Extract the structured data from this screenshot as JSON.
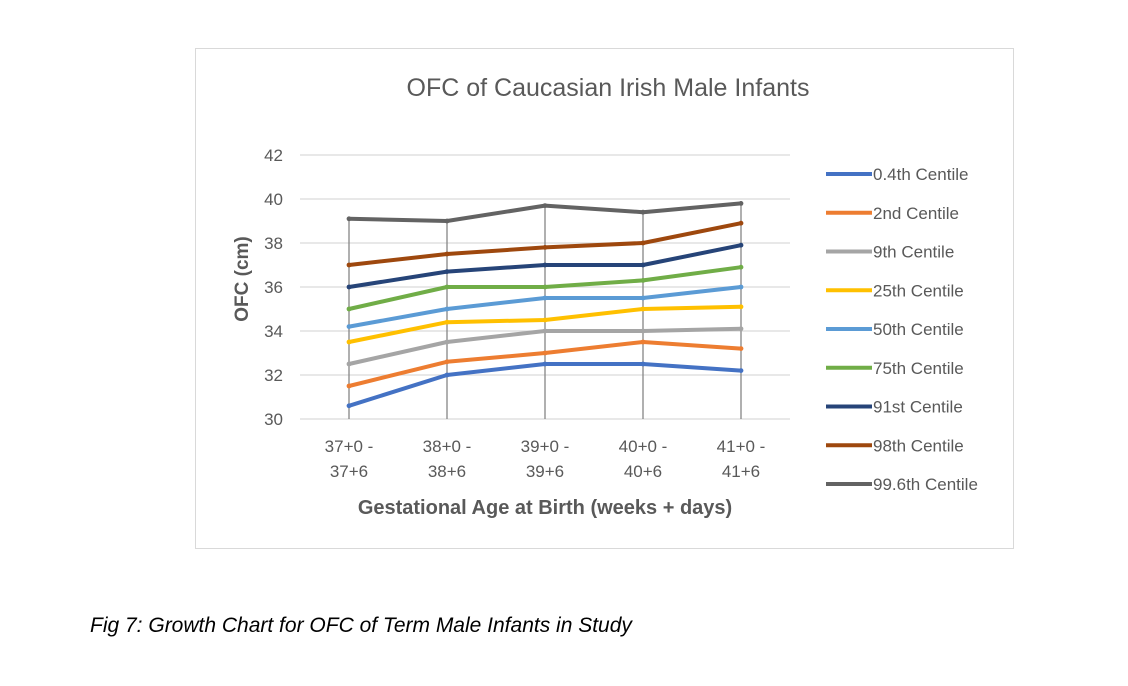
{
  "caption": "Fig 7: Growth Chart for OFC of Term Male Infants in Study",
  "chart_data": {
    "type": "line",
    "title": "OFC of Caucasian Irish Male Infants",
    "xlabel": "Gestational Age at Birth (weeks + days)",
    "ylabel": "OFC (cm)",
    "ylim": [
      30,
      42
    ],
    "yticks": [
      30,
      32,
      34,
      36,
      38,
      40,
      42
    ],
    "grid": true,
    "legend_position": "right",
    "categories": [
      [
        "37+0 -",
        "37+6"
      ],
      [
        "38+0 -",
        "38+6"
      ],
      [
        "39+0 -",
        "39+6"
      ],
      [
        "40+0 -",
        "40+6"
      ],
      [
        "41+0 -",
        "41+6"
      ]
    ],
    "series": [
      {
        "name": "0.4th Centile",
        "color": "#4472c4",
        "values": [
          30.6,
          32.0,
          32.5,
          32.5,
          32.2
        ]
      },
      {
        "name": "2nd Centile",
        "color": "#ed7d31",
        "values": [
          31.5,
          32.6,
          33.0,
          33.5,
          33.2
        ]
      },
      {
        "name": "9th Centile",
        "color": "#a5a5a5",
        "values": [
          32.5,
          33.5,
          34.0,
          34.0,
          34.1
        ]
      },
      {
        "name": "25th Centile",
        "color": "#ffc000",
        "values": [
          33.5,
          34.4,
          34.5,
          35.0,
          35.1
        ]
      },
      {
        "name": "50th Centile",
        "color": "#5b9bd5",
        "values": [
          34.2,
          35.0,
          35.5,
          35.5,
          36.0
        ]
      },
      {
        "name": "75th Centile",
        "color": "#70ad47",
        "values": [
          35.0,
          36.0,
          36.0,
          36.3,
          36.9
        ]
      },
      {
        "name": "91st Centile",
        "color": "#264478",
        "values": [
          36.0,
          36.7,
          37.0,
          37.0,
          37.9
        ]
      },
      {
        "name": "98th Centile",
        "color": "#9e480e",
        "values": [
          37.0,
          37.5,
          37.8,
          38.0,
          38.9
        ]
      },
      {
        "name": "99.6th Centile",
        "color": "#636363",
        "values": [
          39.1,
          39.0,
          39.7,
          39.4,
          39.8
        ]
      }
    ]
  }
}
